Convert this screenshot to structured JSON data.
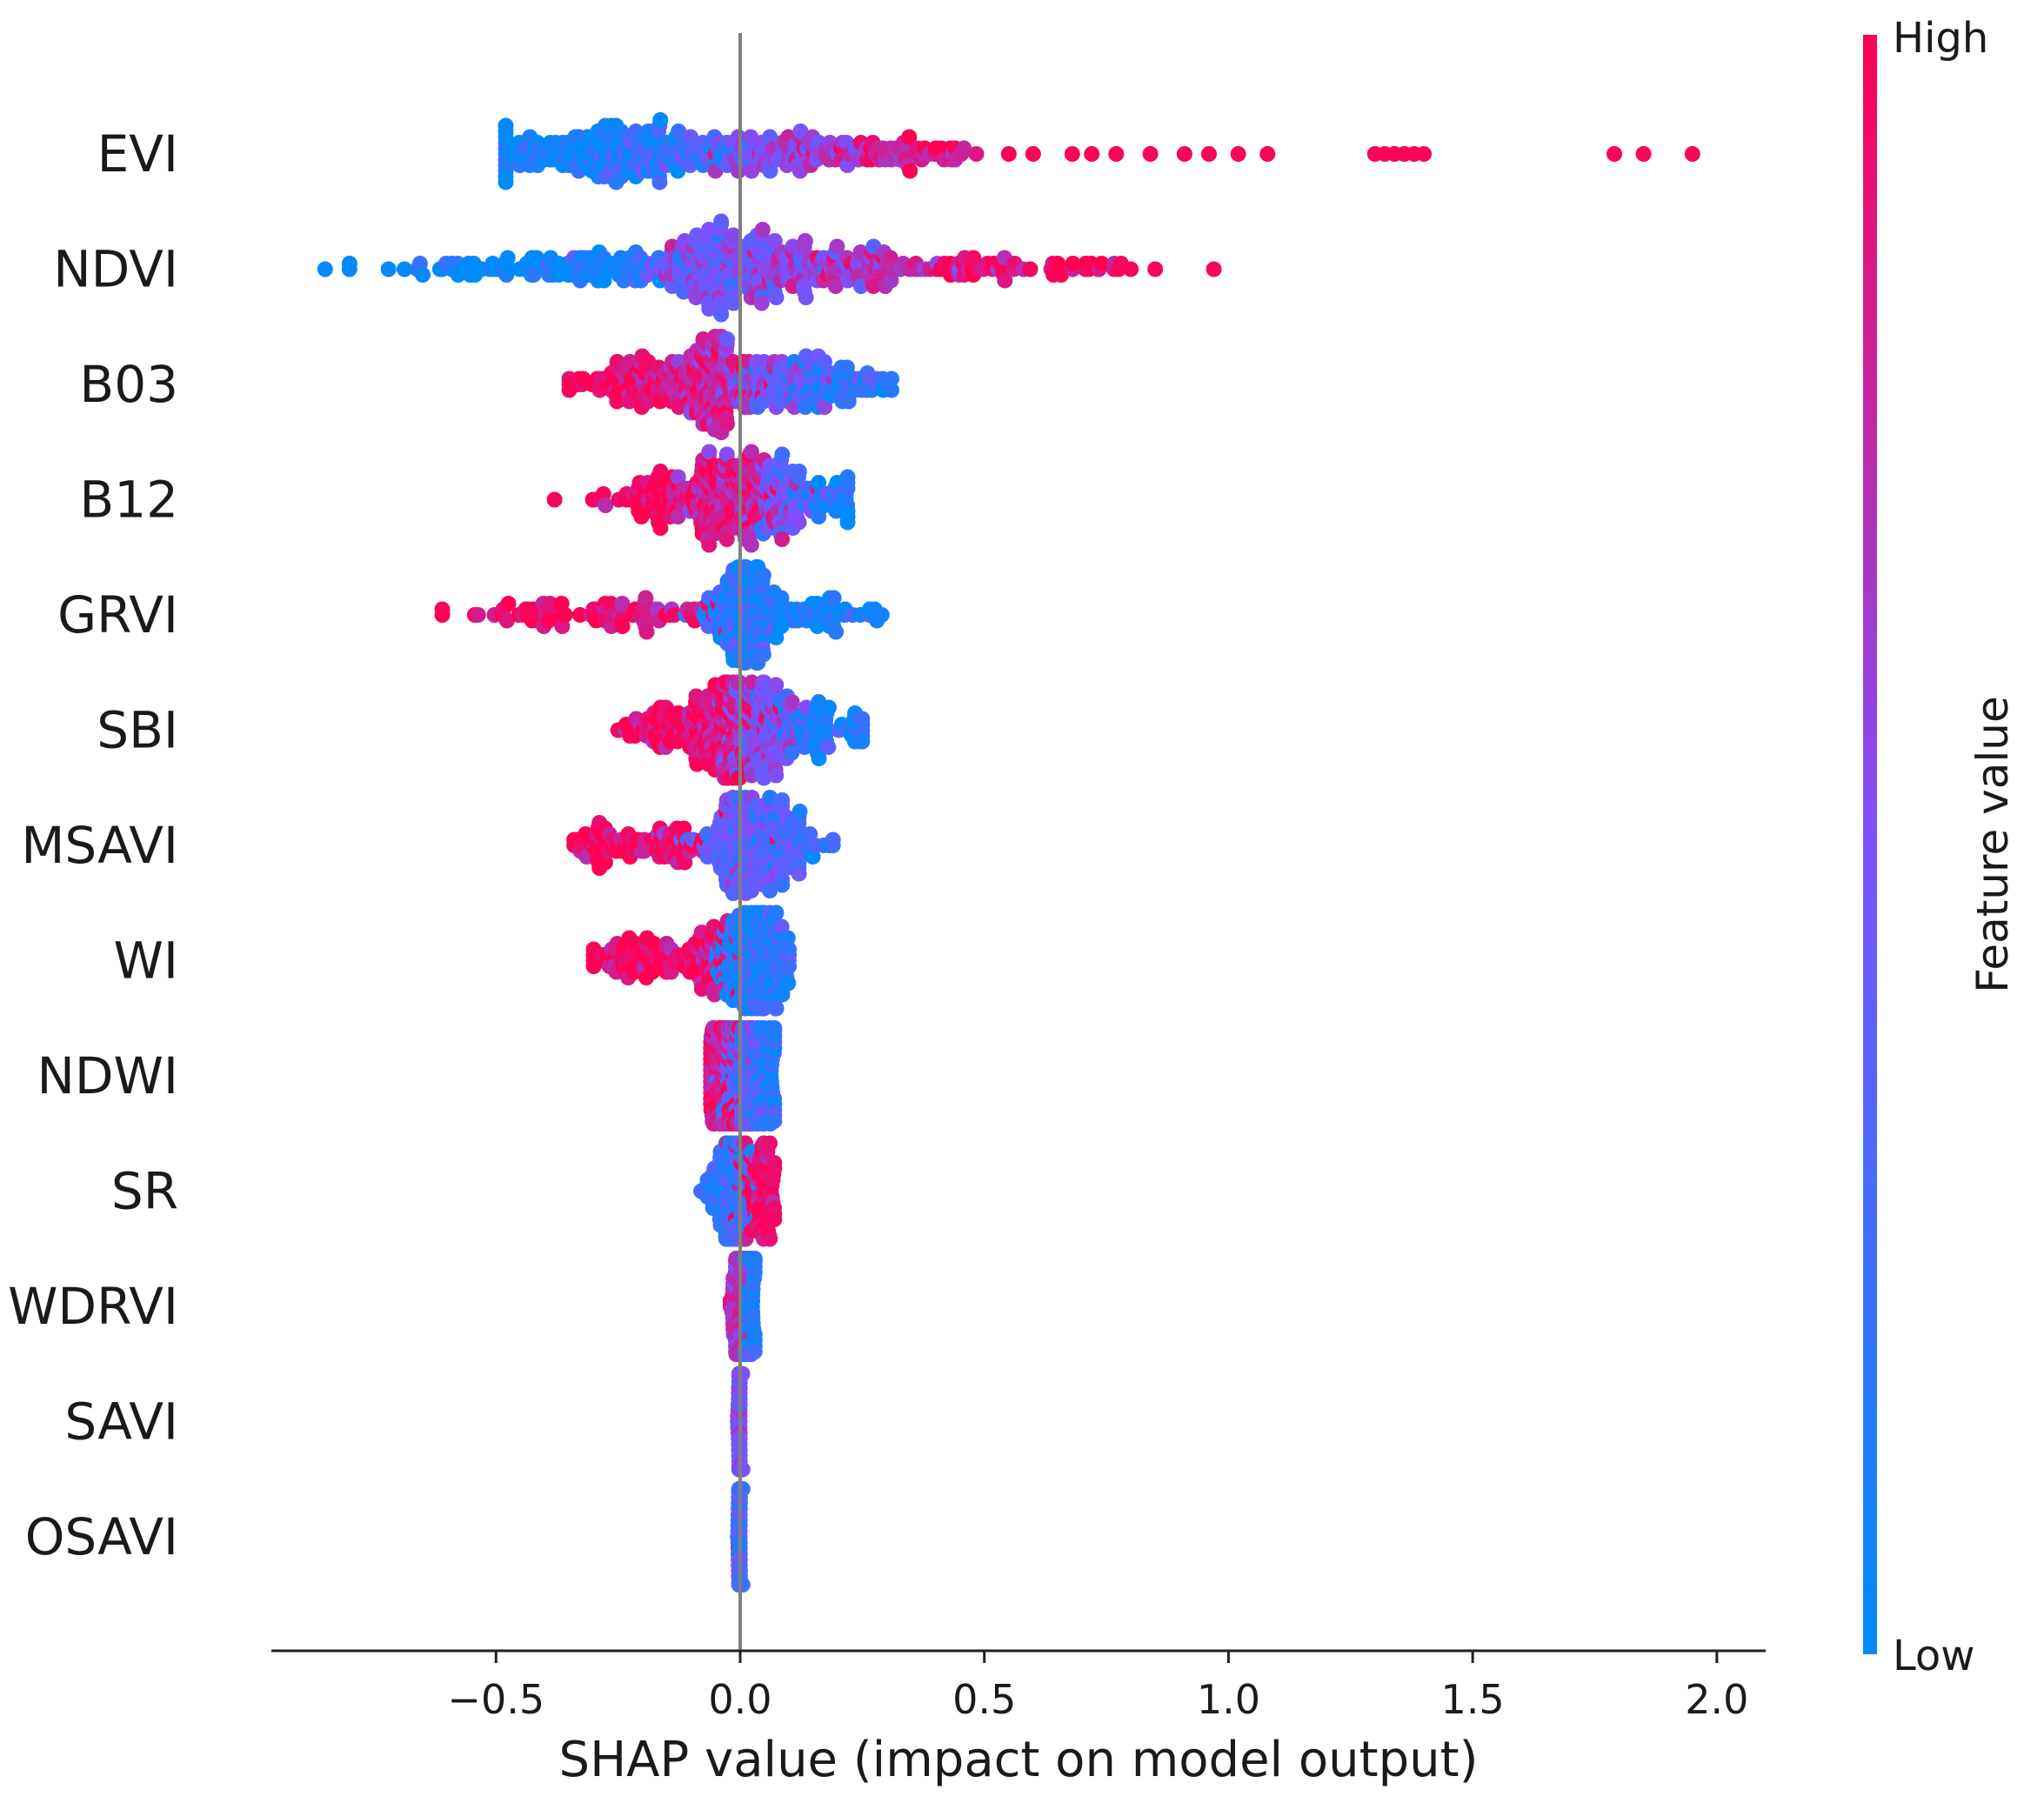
{
  "chart_data": {
    "type": "scatter",
    "subtype": "shap-beeswarm",
    "title": "",
    "xlabel": "SHAP value (impact on model output)",
    "ylabel": "",
    "xlim": [
      -0.96,
      2.1
    ],
    "xticks": [
      -0.5,
      0.0,
      0.5,
      1.0,
      1.5,
      2.0
    ],
    "xtick_labels": [
      "−0.5",
      "0.0",
      "0.5",
      "1.0",
      "1.5",
      "2.0"
    ],
    "zero_line": 0.0,
    "colorbar": {
      "title": "Feature value",
      "high_label": "High",
      "low_label": "Low",
      "low_color": "#008bfb",
      "mid_color": "#7c52ff",
      "high_color": "#ff0052"
    },
    "features": [
      {
        "name": "EVI",
        "shap_min": -0.48,
        "shap_max": 1.96,
        "bulk": [
          {
            "x": -0.3,
            "color_value": 0.05,
            "spread": 0.12,
            "weight": 1.0
          },
          {
            "x": -0.17,
            "color_value": 0.3,
            "spread": 0.08,
            "weight": 0.5
          },
          {
            "x": 0.02,
            "color_value": 0.5,
            "spread": 0.06,
            "weight": 0.35
          },
          {
            "x": 0.14,
            "color_value": 0.65,
            "spread": 0.07,
            "weight": 0.3
          },
          {
            "x": 0.28,
            "color_value": 0.78,
            "spread": 0.06,
            "weight": 0.22
          },
          {
            "x": 0.42,
            "color_value": 0.88,
            "spread": 0.06,
            "weight": 0.14
          }
        ],
        "outliers": [
          0.55,
          0.6,
          0.68,
          0.72,
          0.77,
          0.84,
          0.91,
          0.96,
          1.02,
          1.08,
          1.3,
          1.32,
          1.34,
          1.36,
          1.38,
          1.4,
          1.79,
          1.85,
          1.95
        ]
      },
      {
        "name": "NDVI",
        "shap_min": -0.85,
        "shap_max": 0.97,
        "bulk": [
          {
            "x": -0.55,
            "color_value": 0.05,
            "spread": 0.1,
            "weight": 0.25
          },
          {
            "x": -0.3,
            "color_value": 0.1,
            "spread": 0.1,
            "weight": 0.5
          },
          {
            "x": -0.05,
            "color_value": 0.45,
            "spread": 0.06,
            "weight": 1.0
          },
          {
            "x": 0.1,
            "color_value": 0.55,
            "spread": 0.07,
            "weight": 0.6
          },
          {
            "x": 0.3,
            "color_value": 0.75,
            "spread": 0.08,
            "weight": 0.35
          },
          {
            "x": 0.5,
            "color_value": 0.92,
            "spread": 0.07,
            "weight": 0.2
          },
          {
            "x": 0.7,
            "color_value": 0.97,
            "spread": 0.06,
            "weight": 0.12
          }
        ],
        "outliers": [
          -0.85,
          -0.8,
          -0.72,
          -0.65,
          0.78,
          0.8,
          0.85,
          0.97
        ]
      },
      {
        "name": "B03",
        "shap_min": -0.35,
        "shap_max": 0.31,
        "bulk": [
          {
            "x": -0.22,
            "color_value": 0.95,
            "spread": 0.06,
            "weight": 0.5
          },
          {
            "x": -0.06,
            "color_value": 0.8,
            "spread": 0.05,
            "weight": 1.0
          },
          {
            "x": 0.08,
            "color_value": 0.45,
            "spread": 0.06,
            "weight": 0.6
          },
          {
            "x": 0.2,
            "color_value": 0.15,
            "spread": 0.06,
            "weight": 0.4
          }
        ],
        "outliers": [
          -0.35,
          -0.33,
          0.3,
          0.31
        ]
      },
      {
        "name": "B12",
        "shap_min": -0.38,
        "shap_max": 0.22,
        "bulk": [
          {
            "x": -0.15,
            "color_value": 0.97,
            "spread": 0.06,
            "weight": 0.55
          },
          {
            "x": -0.02,
            "color_value": 0.8,
            "spread": 0.05,
            "weight": 1.0
          },
          {
            "x": 0.1,
            "color_value": 0.45,
            "spread": 0.05,
            "weight": 0.5
          },
          {
            "x": 0.18,
            "color_value": 0.1,
            "spread": 0.04,
            "weight": 0.2
          }
        ],
        "outliers": [
          -0.38,
          -0.3,
          -0.28
        ]
      },
      {
        "name": "GRVI",
        "shap_min": -0.61,
        "shap_max": 0.29,
        "bulk": [
          {
            "x": -0.4,
            "color_value": 0.98,
            "spread": 0.07,
            "weight": 0.25
          },
          {
            "x": -0.18,
            "color_value": 0.9,
            "spread": 0.07,
            "weight": 0.3
          },
          {
            "x": 0.01,
            "color_value": 0.15,
            "spread": 0.04,
            "weight": 1.0
          },
          {
            "x": 0.15,
            "color_value": 0.08,
            "spread": 0.06,
            "weight": 0.35
          }
        ],
        "outliers": [
          -0.61,
          0.28,
          0.29
        ]
      },
      {
        "name": "SBI",
        "shap_min": -0.25,
        "shap_max": 0.25,
        "bulk": [
          {
            "x": -0.18,
            "color_value": 0.97,
            "spread": 0.04,
            "weight": 0.3
          },
          {
            "x": -0.05,
            "color_value": 0.9,
            "spread": 0.04,
            "weight": 1.0
          },
          {
            "x": 0.05,
            "color_value": 0.5,
            "spread": 0.04,
            "weight": 0.8
          },
          {
            "x": 0.17,
            "color_value": 0.1,
            "spread": 0.04,
            "weight": 0.4
          }
        ],
        "outliers": [
          -0.25,
          0.25
        ]
      },
      {
        "name": "MSAVI",
        "shap_min": -0.34,
        "shap_max": 0.19,
        "bulk": [
          {
            "x": -0.28,
            "color_value": 0.98,
            "spread": 0.04,
            "weight": 0.3
          },
          {
            "x": -0.14,
            "color_value": 0.92,
            "spread": 0.04,
            "weight": 0.3
          },
          {
            "x": 0.0,
            "color_value": 0.4,
            "spread": 0.04,
            "weight": 1.0
          },
          {
            "x": 0.09,
            "color_value": 0.3,
            "spread": 0.04,
            "weight": 0.5
          }
        ],
        "outliers": [
          -0.34,
          0.14,
          0.19
        ]
      },
      {
        "name": "WI",
        "shap_min": -0.3,
        "shap_max": 0.1,
        "bulk": [
          {
            "x": -0.22,
            "color_value": 0.97,
            "spread": 0.05,
            "weight": 0.4
          },
          {
            "x": -0.08,
            "color_value": 0.9,
            "spread": 0.04,
            "weight": 0.45
          },
          {
            "x": 0.02,
            "color_value": 0.15,
            "spread": 0.03,
            "weight": 1.0
          },
          {
            "x": 0.07,
            "color_value": 0.2,
            "spread": 0.02,
            "weight": 0.3
          }
        ],
        "outliers": [
          -0.3,
          0.1
        ]
      },
      {
        "name": "NDWI",
        "shap_min": -0.06,
        "shap_max": 0.07,
        "bulk": [
          {
            "x": -0.03,
            "color_value": 0.85,
            "spread": 0.02,
            "weight": 0.8
          },
          {
            "x": 0.01,
            "color_value": 0.35,
            "spread": 0.02,
            "weight": 1.0
          },
          {
            "x": 0.05,
            "color_value": 0.15,
            "spread": 0.02,
            "weight": 0.4
          }
        ],
        "outliers": [
          0.07
        ]
      },
      {
        "name": "SR",
        "shap_min": -0.08,
        "shap_max": 0.07,
        "bulk": [
          {
            "x": -0.02,
            "color_value": 0.2,
            "spread": 0.02,
            "weight": 1.0
          },
          {
            "x": 0.04,
            "color_value": 0.95,
            "spread": 0.02,
            "weight": 0.5
          }
        ],
        "outliers": [
          -0.08,
          0.07
        ]
      },
      {
        "name": "WDRVI",
        "shap_min": -0.02,
        "shap_max": 0.03,
        "bulk": [
          {
            "x": 0.0,
            "color_value": 0.7,
            "spread": 0.008,
            "weight": 1.0
          },
          {
            "x": 0.02,
            "color_value": 0.15,
            "spread": 0.008,
            "weight": 0.4
          }
        ],
        "outliers": []
      },
      {
        "name": "SAVI",
        "shap_min": -0.005,
        "shap_max": 0.005,
        "bulk": [
          {
            "x": 0.0,
            "color_value": 0.5,
            "spread": 0.002,
            "weight": 1.0
          }
        ],
        "outliers": []
      },
      {
        "name": "OSAVI",
        "shap_min": -0.005,
        "shap_max": 0.005,
        "bulk": [
          {
            "x": 0.0,
            "color_value": 0.3,
            "spread": 0.002,
            "weight": 1.0
          }
        ],
        "outliers": []
      }
    ]
  }
}
